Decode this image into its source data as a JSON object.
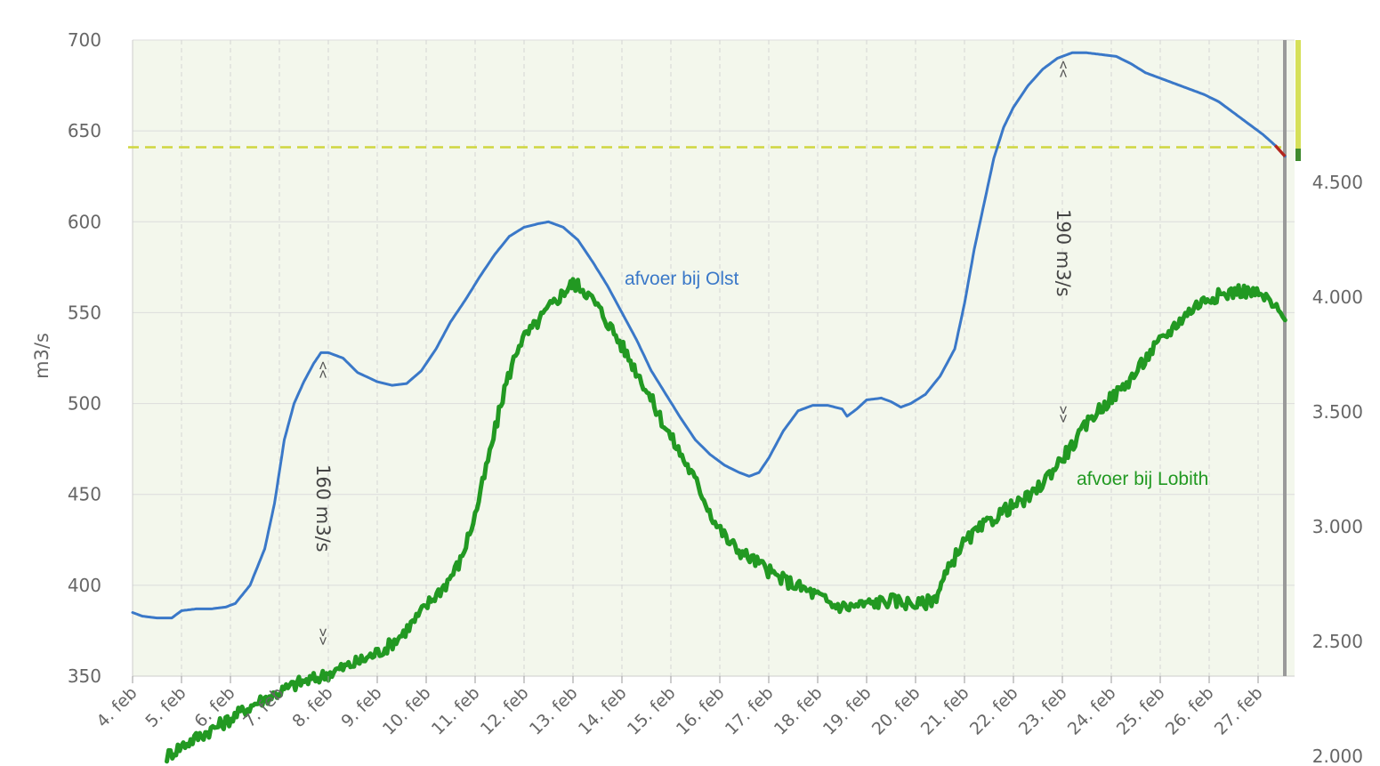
{
  "chart_data": {
    "type": "line",
    "xlabel": "",
    "ylabel": "m3/s",
    "x_categories": [
      "4. feb",
      "5. feb",
      "6. feb",
      "7. feb",
      "8. feb",
      "9. feb",
      "10. feb",
      "11. feb",
      "12. feb",
      "13. feb",
      "14. feb",
      "15. feb",
      "16. feb",
      "17. feb",
      "18. feb",
      "19. feb",
      "20. feb",
      "21. feb",
      "22. feb",
      "23. feb",
      "24. feb",
      "25. feb",
      "26. feb",
      "27. feb"
    ],
    "x_range": [
      0,
      23.55
    ],
    "ylim_left": [
      350,
      700
    ],
    "yticks_left": [
      {
        "value": 350,
        "label": "350"
      },
      {
        "value": 400,
        "label": "400"
      },
      {
        "value": 450,
        "label": "450"
      },
      {
        "value": 500,
        "label": "500"
      },
      {
        "value": 550,
        "label": "550"
      },
      {
        "value": 600,
        "label": "600"
      },
      {
        "value": 650,
        "label": "650"
      },
      {
        "value": 700,
        "label": "700"
      }
    ],
    "ylim_right": [
      2000,
      4750
    ],
    "yticks_right": [
      {
        "value": 2000,
        "label": "2.000"
      },
      {
        "value": 2500,
        "label": "2.500"
      },
      {
        "value": 3000,
        "label": "3.000"
      },
      {
        "value": 3500,
        "label": "3.500"
      },
      {
        "value": 4000,
        "label": "4.000"
      },
      {
        "value": 4500,
        "label": "4.500"
      }
    ],
    "grid": true,
    "threshold_left": 641,
    "series": [
      {
        "name": "afvoer bij Olst",
        "axis": "left",
        "color": "#3a78c8",
        "points": [
          [
            0.0,
            385
          ],
          [
            0.2,
            383
          ],
          [
            0.5,
            382
          ],
          [
            0.8,
            382
          ],
          [
            1.0,
            386
          ],
          [
            1.3,
            387
          ],
          [
            1.6,
            387
          ],
          [
            1.9,
            388
          ],
          [
            2.1,
            390
          ],
          [
            2.4,
            400
          ],
          [
            2.7,
            420
          ],
          [
            2.9,
            445
          ],
          [
            3.1,
            480
          ],
          [
            3.3,
            500
          ],
          [
            3.5,
            512
          ],
          [
            3.7,
            522
          ],
          [
            3.85,
            528
          ],
          [
            4.0,
            528
          ],
          [
            4.3,
            525
          ],
          [
            4.6,
            517
          ],
          [
            5.0,
            512
          ],
          [
            5.3,
            510
          ],
          [
            5.6,
            511
          ],
          [
            5.9,
            518
          ],
          [
            6.2,
            530
          ],
          [
            6.5,
            545
          ],
          [
            6.8,
            557
          ],
          [
            7.1,
            570
          ],
          [
            7.4,
            582
          ],
          [
            7.7,
            592
          ],
          [
            8.0,
            597
          ],
          [
            8.3,
            599
          ],
          [
            8.5,
            600
          ],
          [
            8.8,
            597
          ],
          [
            9.1,
            590
          ],
          [
            9.4,
            578
          ],
          [
            9.7,
            565
          ],
          [
            10.0,
            550
          ],
          [
            10.3,
            535
          ],
          [
            10.6,
            518
          ],
          [
            10.9,
            505
          ],
          [
            11.2,
            492
          ],
          [
            11.5,
            480
          ],
          [
            11.8,
            472
          ],
          [
            12.1,
            466
          ],
          [
            12.4,
            462
          ],
          [
            12.6,
            460
          ],
          [
            12.8,
            462
          ],
          [
            13.0,
            470
          ],
          [
            13.3,
            485
          ],
          [
            13.6,
            496
          ],
          [
            13.9,
            499
          ],
          [
            14.2,
            499
          ],
          [
            14.5,
            497
          ],
          [
            14.6,
            493
          ],
          [
            14.8,
            497
          ],
          [
            15.0,
            502
          ],
          [
            15.3,
            503
          ],
          [
            15.5,
            501
          ],
          [
            15.7,
            498
          ],
          [
            15.9,
            500
          ],
          [
            16.2,
            505
          ],
          [
            16.5,
            515
          ],
          [
            16.8,
            530
          ],
          [
            17.0,
            555
          ],
          [
            17.2,
            585
          ],
          [
            17.4,
            610
          ],
          [
            17.6,
            635
          ],
          [
            17.8,
            652
          ],
          [
            18.0,
            663
          ],
          [
            18.3,
            675
          ],
          [
            18.6,
            684
          ],
          [
            18.9,
            690
          ],
          [
            19.2,
            693
          ],
          [
            19.5,
            693
          ],
          [
            19.8,
            692
          ],
          [
            20.1,
            691
          ],
          [
            20.4,
            687
          ],
          [
            20.7,
            682
          ],
          [
            21.0,
            679
          ],
          [
            21.3,
            676
          ],
          [
            21.6,
            673
          ],
          [
            21.9,
            670
          ],
          [
            22.2,
            666
          ],
          [
            22.5,
            660
          ],
          [
            22.8,
            654
          ],
          [
            23.1,
            648
          ],
          [
            23.35,
            642
          ],
          [
            23.55,
            636
          ]
        ]
      },
      {
        "name": "afvoer bij Lobith",
        "axis": "right",
        "color": "#229922",
        "points": [
          [
            0.7,
            2000
          ],
          [
            1.0,
            2045
          ],
          [
            1.3,
            2080
          ],
          [
            1.6,
            2115
          ],
          [
            1.9,
            2150
          ],
          [
            2.2,
            2190
          ],
          [
            2.5,
            2230
          ],
          [
            2.8,
            2260
          ],
          [
            3.1,
            2290
          ],
          [
            3.4,
            2320
          ],
          [
            3.7,
            2335
          ],
          [
            4.0,
            2360
          ],
          [
            4.3,
            2385
          ],
          [
            4.6,
            2410
          ],
          [
            4.9,
            2440
          ],
          [
            5.2,
            2475
          ],
          [
            5.5,
            2530
          ],
          [
            5.8,
            2600
          ],
          [
            6.1,
            2680
          ],
          [
            6.4,
            2750
          ],
          [
            6.7,
            2850
          ],
          [
            7.0,
            3050
          ],
          [
            7.3,
            3320
          ],
          [
            7.6,
            3600
          ],
          [
            7.9,
            3800
          ],
          [
            8.2,
            3870
          ],
          [
            8.5,
            3950
          ],
          [
            8.8,
            4020
          ],
          [
            9.0,
            4060
          ],
          [
            9.2,
            4040
          ],
          [
            9.5,
            3960
          ],
          [
            9.8,
            3860
          ],
          [
            10.1,
            3750
          ],
          [
            10.4,
            3640
          ],
          [
            10.7,
            3510
          ],
          [
            11.0,
            3390
          ],
          [
            11.3,
            3280
          ],
          [
            11.6,
            3160
          ],
          [
            11.9,
            3020
          ],
          [
            12.2,
            2930
          ],
          [
            12.5,
            2880
          ],
          [
            12.8,
            2840
          ],
          [
            13.1,
            2790
          ],
          [
            13.4,
            2760
          ],
          [
            13.7,
            2730
          ],
          [
            14.0,
            2700
          ],
          [
            14.3,
            2660
          ],
          [
            14.6,
            2650
          ],
          [
            14.9,
            2660
          ],
          [
            15.2,
            2670
          ],
          [
            15.5,
            2680
          ],
          [
            15.8,
            2670
          ],
          [
            16.1,
            2660
          ],
          [
            16.4,
            2690
          ],
          [
            16.6,
            2780
          ],
          [
            16.9,
            2910
          ],
          [
            17.2,
            2970
          ],
          [
            17.5,
            3020
          ],
          [
            17.8,
            3070
          ],
          [
            18.1,
            3100
          ],
          [
            18.4,
            3140
          ],
          [
            18.7,
            3220
          ],
          [
            19.0,
            3300
          ],
          [
            19.3,
            3380
          ],
          [
            19.6,
            3480
          ],
          [
            19.9,
            3540
          ],
          [
            20.2,
            3600
          ],
          [
            20.5,
            3670
          ],
          [
            20.8,
            3760
          ],
          [
            21.1,
            3830
          ],
          [
            21.4,
            3900
          ],
          [
            21.7,
            3960
          ],
          [
            22.0,
            4000
          ],
          [
            22.3,
            4010
          ],
          [
            22.6,
            4030
          ],
          [
            22.9,
            4020
          ],
          [
            23.2,
            3990
          ],
          [
            23.55,
            3900
          ]
        ]
      }
    ],
    "annotations": {
      "olst_label": "afvoer bij Olst",
      "lobith_label": "afvoer bij Lobith",
      "annot_160": "160 m3/s",
      "annot_190": "190 m3/s",
      "marker_up": "<<",
      "marker_down": ">>"
    }
  }
}
